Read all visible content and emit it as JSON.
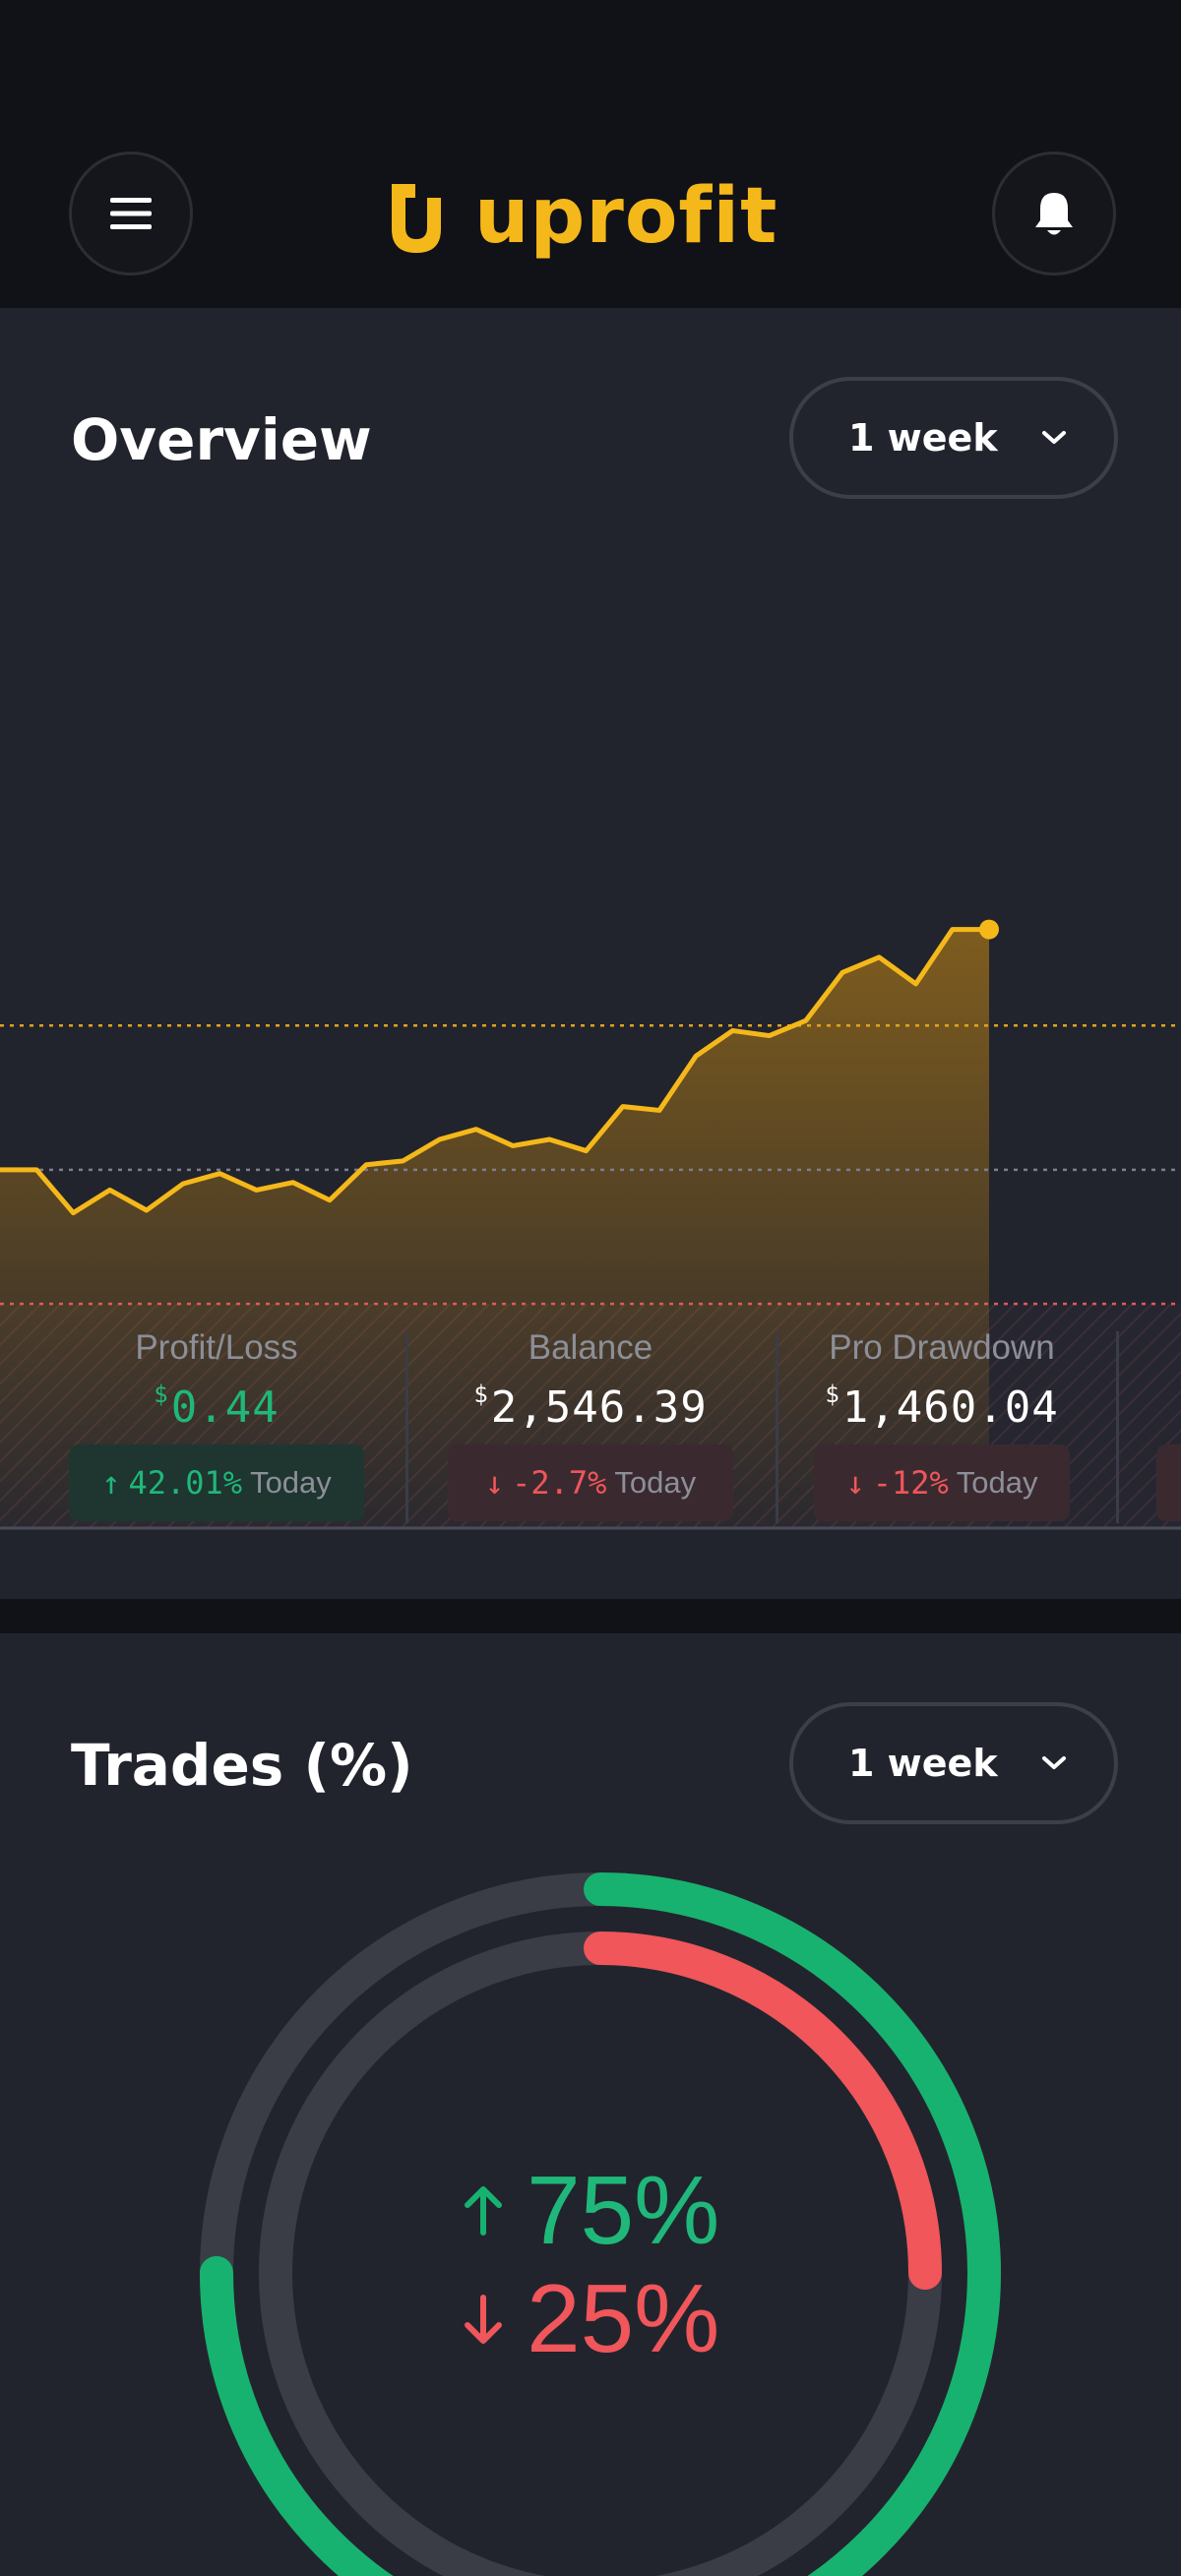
{
  "header": {
    "brand": "uprofit",
    "menu_icon": "hamburger-icon",
    "notification_icon": "bell-icon"
  },
  "overview": {
    "title": "Overview",
    "period": "1 week"
  },
  "chart_data": {
    "type": "area",
    "x": [
      0,
      1,
      2,
      3,
      4,
      5,
      6,
      7,
      8,
      9,
      10,
      11,
      12,
      13,
      14,
      15,
      16,
      17,
      18,
      19,
      20,
      21,
      22,
      23,
      24,
      25,
      26,
      27
    ],
    "values": [
      2546,
      2546,
      2512,
      2530,
      2514,
      2535,
      2543,
      2530,
      2536,
      2522,
      2550,
      2553,
      2570,
      2578,
      2565,
      2570,
      2561,
      2596,
      2593,
      2636,
      2656,
      2652,
      2664,
      2702,
      2714,
      2693,
      2736,
      2736
    ],
    "reference_lines": [
      {
        "value": 2660,
        "color": "#e0a320"
      },
      {
        "value": 2546,
        "color": "#7b7f8c"
      },
      {
        "value": 2440,
        "color": "#e05a5a"
      }
    ],
    "line_color": "#f5b81a"
  },
  "stats": [
    {
      "label": "Profit/Loss",
      "currency": "$",
      "value": "0.44",
      "change": "42.01%",
      "direction": "up",
      "suffix": "Today"
    },
    {
      "label": "Balance",
      "currency": "$",
      "value": "2,546.39",
      "change": "-2.7%",
      "direction": "down",
      "suffix": "Today"
    },
    {
      "label": "Pro Drawdown",
      "currency": "$",
      "value": "1,460.04",
      "change": "-12%",
      "direction": "down",
      "suffix": "Today"
    }
  ],
  "trades": {
    "title": "Trades (%)",
    "period": "1 week",
    "up_pct": "75%",
    "down_pct": "25%",
    "up_fraction": 0.75,
    "down_fraction": 0.25,
    "up_color": "#17b26f",
    "down_color": "#f0565a"
  }
}
